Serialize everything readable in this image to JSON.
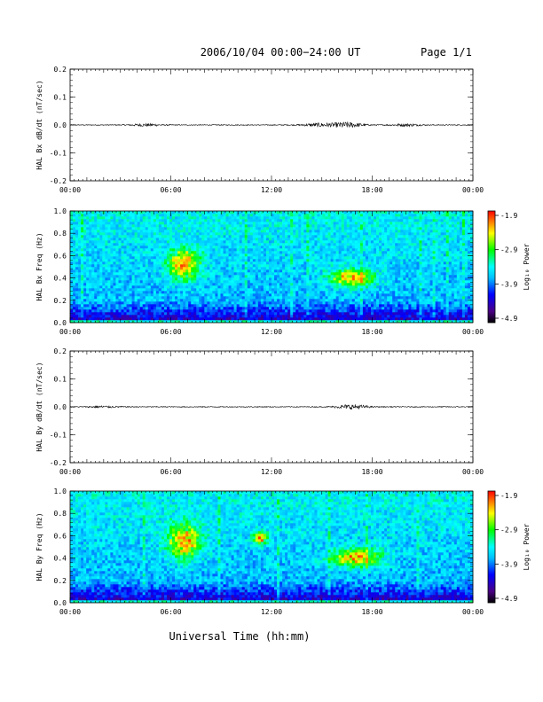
{
  "header": {
    "title": "2006/10/04  00:00−24:00 UT",
    "page": "Page 1/1"
  },
  "xlabel": "Universal Time (hh:mm)",
  "colors": {
    "spectrum": [
      "#000000",
      "#4b0082",
      "#0000ff",
      "#00bfff",
      "#00ffff",
      "#00ff00",
      "#ffff00",
      "#ff7f00",
      "#ff0000"
    ]
  },
  "chart_data": [
    {
      "type": "line",
      "ylabel": "HAL Bx dB/dt (nT/sec)",
      "xlim": [
        0,
        24
      ],
      "ylim": [
        -0.2,
        0.2
      ],
      "yticks": [
        "0.2",
        "0.1",
        "0.0",
        "-0.1",
        "-0.2"
      ],
      "yvals": [
        0.2,
        0.1,
        0.0,
        -0.1,
        -0.2
      ],
      "xticks": [
        "00:00",
        "06:00",
        "12:00",
        "18:00",
        "00:00"
      ],
      "activity": [
        [
          4.5,
          0.004
        ],
        [
          14.8,
          0.006
        ],
        [
          16.5,
          0.01
        ],
        [
          20.0,
          0.004
        ]
      ]
    },
    {
      "type": "heatmap",
      "ylabel": "HAL Bx Freq (Hz)",
      "xlim": [
        0,
        24
      ],
      "ylim": [
        0,
        1.0
      ],
      "yticks": [
        "1.0",
        "0.8",
        "0.6",
        "0.4",
        "0.2",
        "0.0"
      ],
      "yvals": [
        1.0,
        0.8,
        0.6,
        0.4,
        0.2,
        0.0
      ],
      "xticks": [
        "00:00",
        "06:00",
        "12:00",
        "18:00",
        "00:00"
      ],
      "colorbar": {
        "label": "Log₁₀ Power",
        "ticks": [
          "-1.9",
          "-2.9",
          "-3.9",
          "-4.9"
        ],
        "range": [
          -4.9,
          -1.9
        ]
      },
      "features": [
        [
          6.8,
          0.52,
          0.9,
          0.14
        ],
        [
          16.8,
          0.4,
          1.3,
          0.08
        ]
      ]
    },
    {
      "type": "line",
      "ylabel": "HAL By dB/dt (nT/sec)",
      "xlim": [
        0,
        24
      ],
      "ylim": [
        -0.2,
        0.2
      ],
      "yticks": [
        "0.2",
        "0.1",
        "0.0",
        "-0.1",
        "-0.2"
      ],
      "yvals": [
        0.2,
        0.1,
        0.0,
        -0.1,
        -0.2
      ],
      "xticks": [
        "00:00",
        "06:00",
        "12:00",
        "18:00",
        "00:00"
      ],
      "activity": [
        [
          2.0,
          0.003
        ],
        [
          16.8,
          0.008
        ]
      ]
    },
    {
      "type": "heatmap",
      "ylabel": "HAL By Freq (Hz)",
      "xlim": [
        0,
        24
      ],
      "ylim": [
        0,
        1.0
      ],
      "yticks": [
        "1.0",
        "0.8",
        "0.6",
        "0.4",
        "0.2",
        "0.0"
      ],
      "yvals": [
        1.0,
        0.8,
        0.6,
        0.4,
        0.2,
        0.0
      ],
      "xticks": [
        "00:00",
        "06:00",
        "12:00",
        "18:00",
        "00:00"
      ],
      "colorbar": {
        "label": "Log₁₀ Power",
        "ticks": [
          "-1.9",
          "-2.9",
          "-3.9",
          "-4.9"
        ],
        "range": [
          -4.9,
          -1.9
        ]
      },
      "features": [
        [
          6.8,
          0.55,
          1.0,
          0.15
        ],
        [
          11.3,
          0.58,
          0.4,
          0.05
        ],
        [
          17.0,
          0.4,
          1.4,
          0.08
        ]
      ]
    }
  ]
}
